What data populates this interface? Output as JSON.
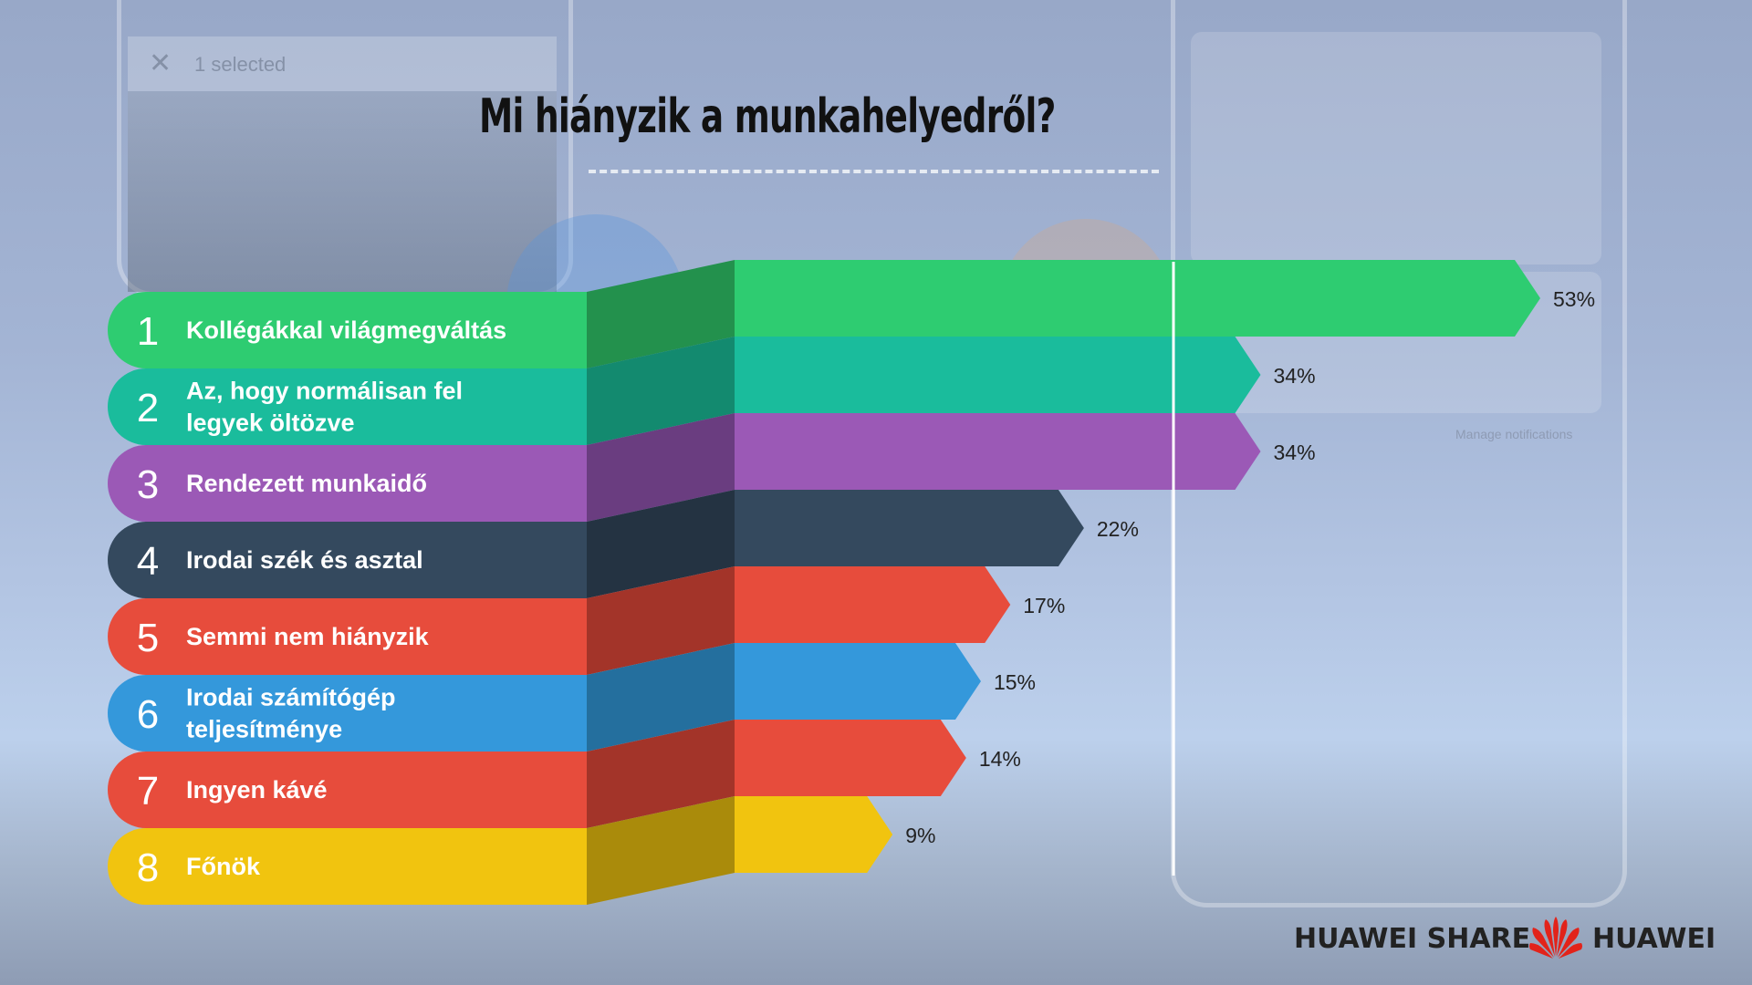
{
  "chart_data": {
    "type": "bar",
    "title": "Mi hiányzik a munkahelyedről?",
    "categories": [
      "Kollégákkal világmegváltás",
      "Az, hogy normálisan fel legyek öltözve",
      "Rendezett munkaidő",
      "Irodai szék és asztal",
      "Semmi nem hiányzik",
      "Irodai számítógép teljesítménye",
      "Ingyen kávé",
      "Főnök"
    ],
    "ranks": [
      "1",
      "2",
      "3",
      "4",
      "5",
      "6",
      "7",
      "8"
    ],
    "values": [
      53,
      34,
      34,
      22,
      17,
      15,
      14,
      9
    ],
    "value_labels": [
      "53%",
      "34%",
      "34%",
      "22%",
      "17%",
      "15%",
      "14%",
      "9%"
    ],
    "colors": [
      "#2ecc71",
      "#1abc9c",
      "#9b59b6",
      "#34495e",
      "#e74c3c",
      "#3498db",
      "#e74c3c",
      "#f1c40f"
    ],
    "fold_colors": [
      "#23914d",
      "#138a6f",
      "#6a3d80",
      "#243342",
      "#a33429",
      "#246f9e",
      "#a33429",
      "#aa8b0b"
    ],
    "xlabel": "",
    "ylabel": "",
    "xlim": [
      0,
      53
    ],
    "grid": false,
    "legend": "none"
  },
  "background": {
    "left_phone_status": "1 selected",
    "notification_text": "Manage notifications"
  },
  "footer": {
    "left": "HUAWEI SHARE",
    "right": "HUAWEI"
  }
}
